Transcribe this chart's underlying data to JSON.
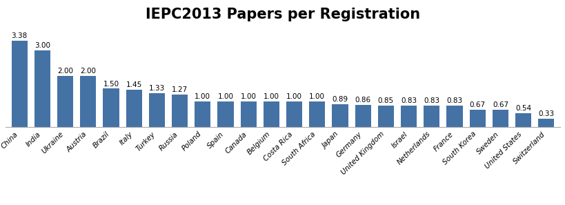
{
  "title": "IEPC2013 Papers per Registration",
  "categories": [
    "China",
    "India",
    "Ukraine",
    "Austria",
    "Brazil",
    "Italy",
    "Turkey",
    "Russia",
    "Poland",
    "Spain",
    "Canada",
    "Belgium",
    "Costa Rica",
    "South Africa",
    "Japan",
    "Germany",
    "United Kingdom",
    "Israel",
    "Netherlands",
    "France",
    "South Korea",
    "Sweden",
    "United States",
    "Switzerland"
  ],
  "values": [
    3.38,
    3.0,
    2.0,
    2.0,
    1.5,
    1.45,
    1.33,
    1.27,
    1.0,
    1.0,
    1.0,
    1.0,
    1.0,
    1.0,
    0.89,
    0.86,
    0.85,
    0.83,
    0.83,
    0.83,
    0.67,
    0.67,
    0.54,
    0.33
  ],
  "bar_color": "#4472A4",
  "title_fontsize": 15,
  "label_fontsize": 7.5,
  "value_fontsize": 7.5,
  "xlabel_rotation": 45,
  "ylim": [
    0,
    4.0
  ],
  "background_color": "#ffffff"
}
